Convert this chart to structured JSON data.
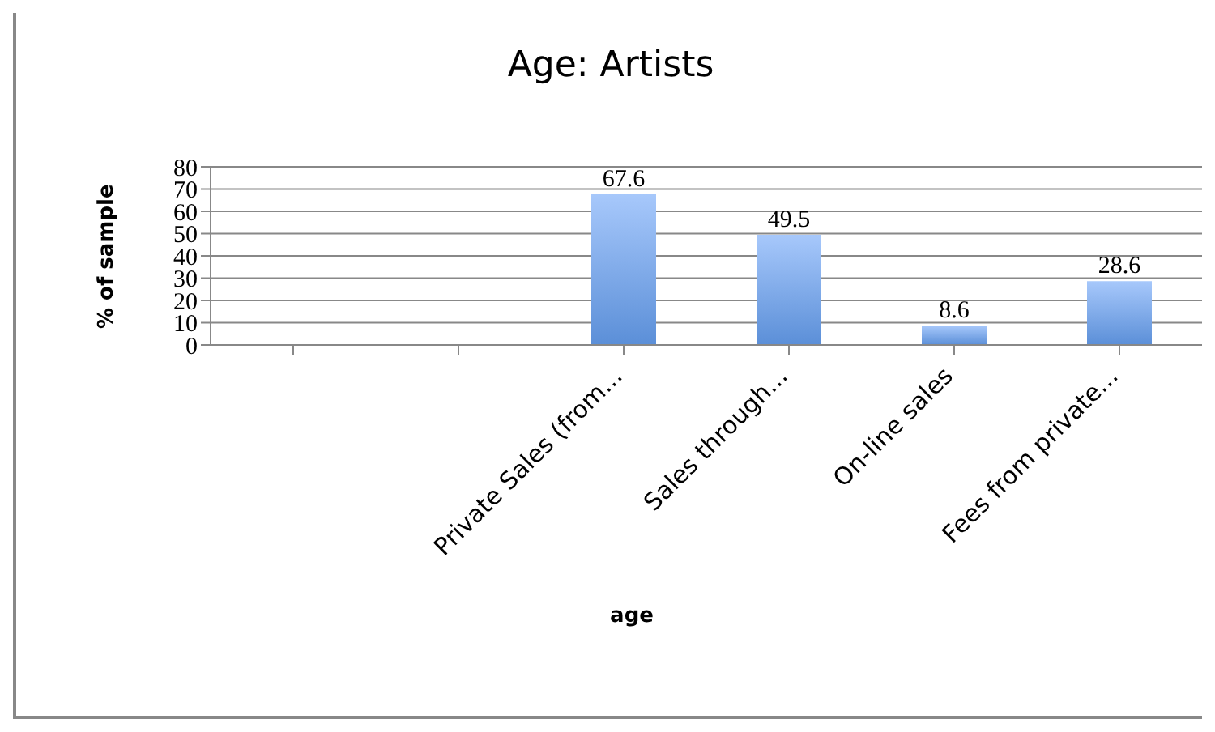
{
  "chart_data": {
    "type": "bar",
    "title": "Age: Artists",
    "xlabel": "age",
    "ylabel": "% of sample",
    "categories": [
      null,
      null,
      "Private Sales (from...",
      "Sales through...",
      "On-line sales",
      "Fees from private..."
    ],
    "values": [
      null,
      null,
      67.6,
      49.5,
      8.6,
      28.6
    ],
    "color": "#5b8fd8",
    "ylim": [
      0,
      80
    ],
    "yticks": [
      0,
      10,
      20,
      30,
      40,
      50,
      60,
      70,
      80
    ],
    "grid": "y",
    "data_labels": true
  }
}
